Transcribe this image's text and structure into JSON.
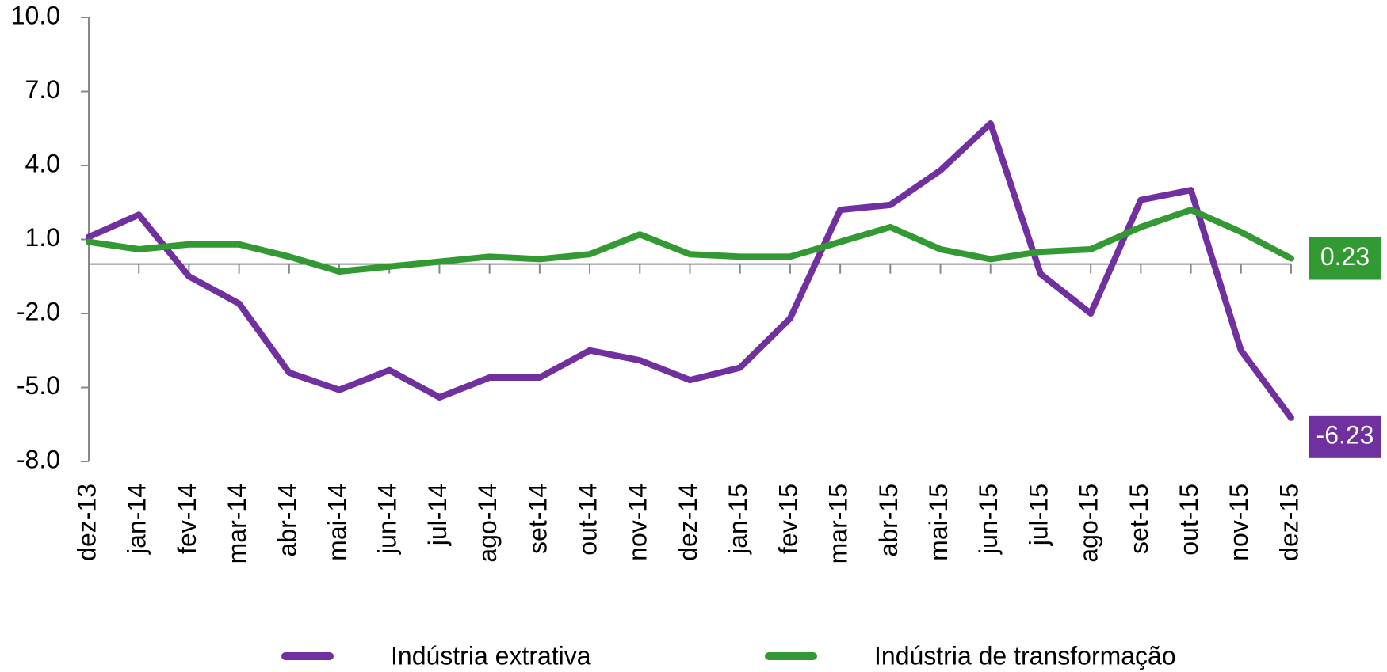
{
  "chart_data": {
    "type": "line",
    "categories": [
      "dez-13",
      "jan-14",
      "fev-14",
      "mar-14",
      "abr-14",
      "mai-14",
      "jun-14",
      "jul-14",
      "ago-14",
      "set-14",
      "out-14",
      "nov-14",
      "dez-14",
      "jan-15",
      "fev-15",
      "mar-15",
      "abr-15",
      "mai-15",
      "jun-15",
      "jul-15",
      "ago-15",
      "set-15",
      "out-15",
      "nov-15",
      "dez-15"
    ],
    "series": [
      {
        "name": "Indústria extrativa",
        "color": "#7030a0",
        "values": [
          1.1,
          2.0,
          -0.5,
          -1.6,
          -4.4,
          -5.1,
          -4.3,
          -5.4,
          -4.6,
          -4.6,
          -3.5,
          -3.9,
          -4.7,
          -4.2,
          -2.2,
          2.2,
          2.4,
          3.8,
          5.7,
          -0.4,
          -2.0,
          2.6,
          3.0,
          -3.5,
          -6.23
        ]
      },
      {
        "name": "Indústria de transformação",
        "color": "#339933",
        "values": [
          0.9,
          0.6,
          0.8,
          0.8,
          0.3,
          -0.3,
          -0.1,
          0.1,
          0.3,
          0.2,
          0.4,
          1.2,
          0.4,
          0.3,
          0.3,
          0.9,
          1.5,
          0.6,
          0.2,
          0.5,
          0.6,
          1.5,
          2.2,
          1.3,
          0.23
        ]
      }
    ],
    "ylim": [
      -8,
      10
    ],
    "yticks": [
      {
        "value": -8,
        "label": "-8.0"
      },
      {
        "value": -5,
        "label": "-5.0"
      },
      {
        "value": -2,
        "label": "-2.0"
      },
      {
        "value": 1,
        "label": "1.0"
      },
      {
        "value": 4,
        "label": "4.0"
      },
      {
        "value": 7,
        "label": "7.0"
      },
      {
        "value": 10,
        "label": "10.0"
      }
    ],
    "legend": "bottom"
  }
}
